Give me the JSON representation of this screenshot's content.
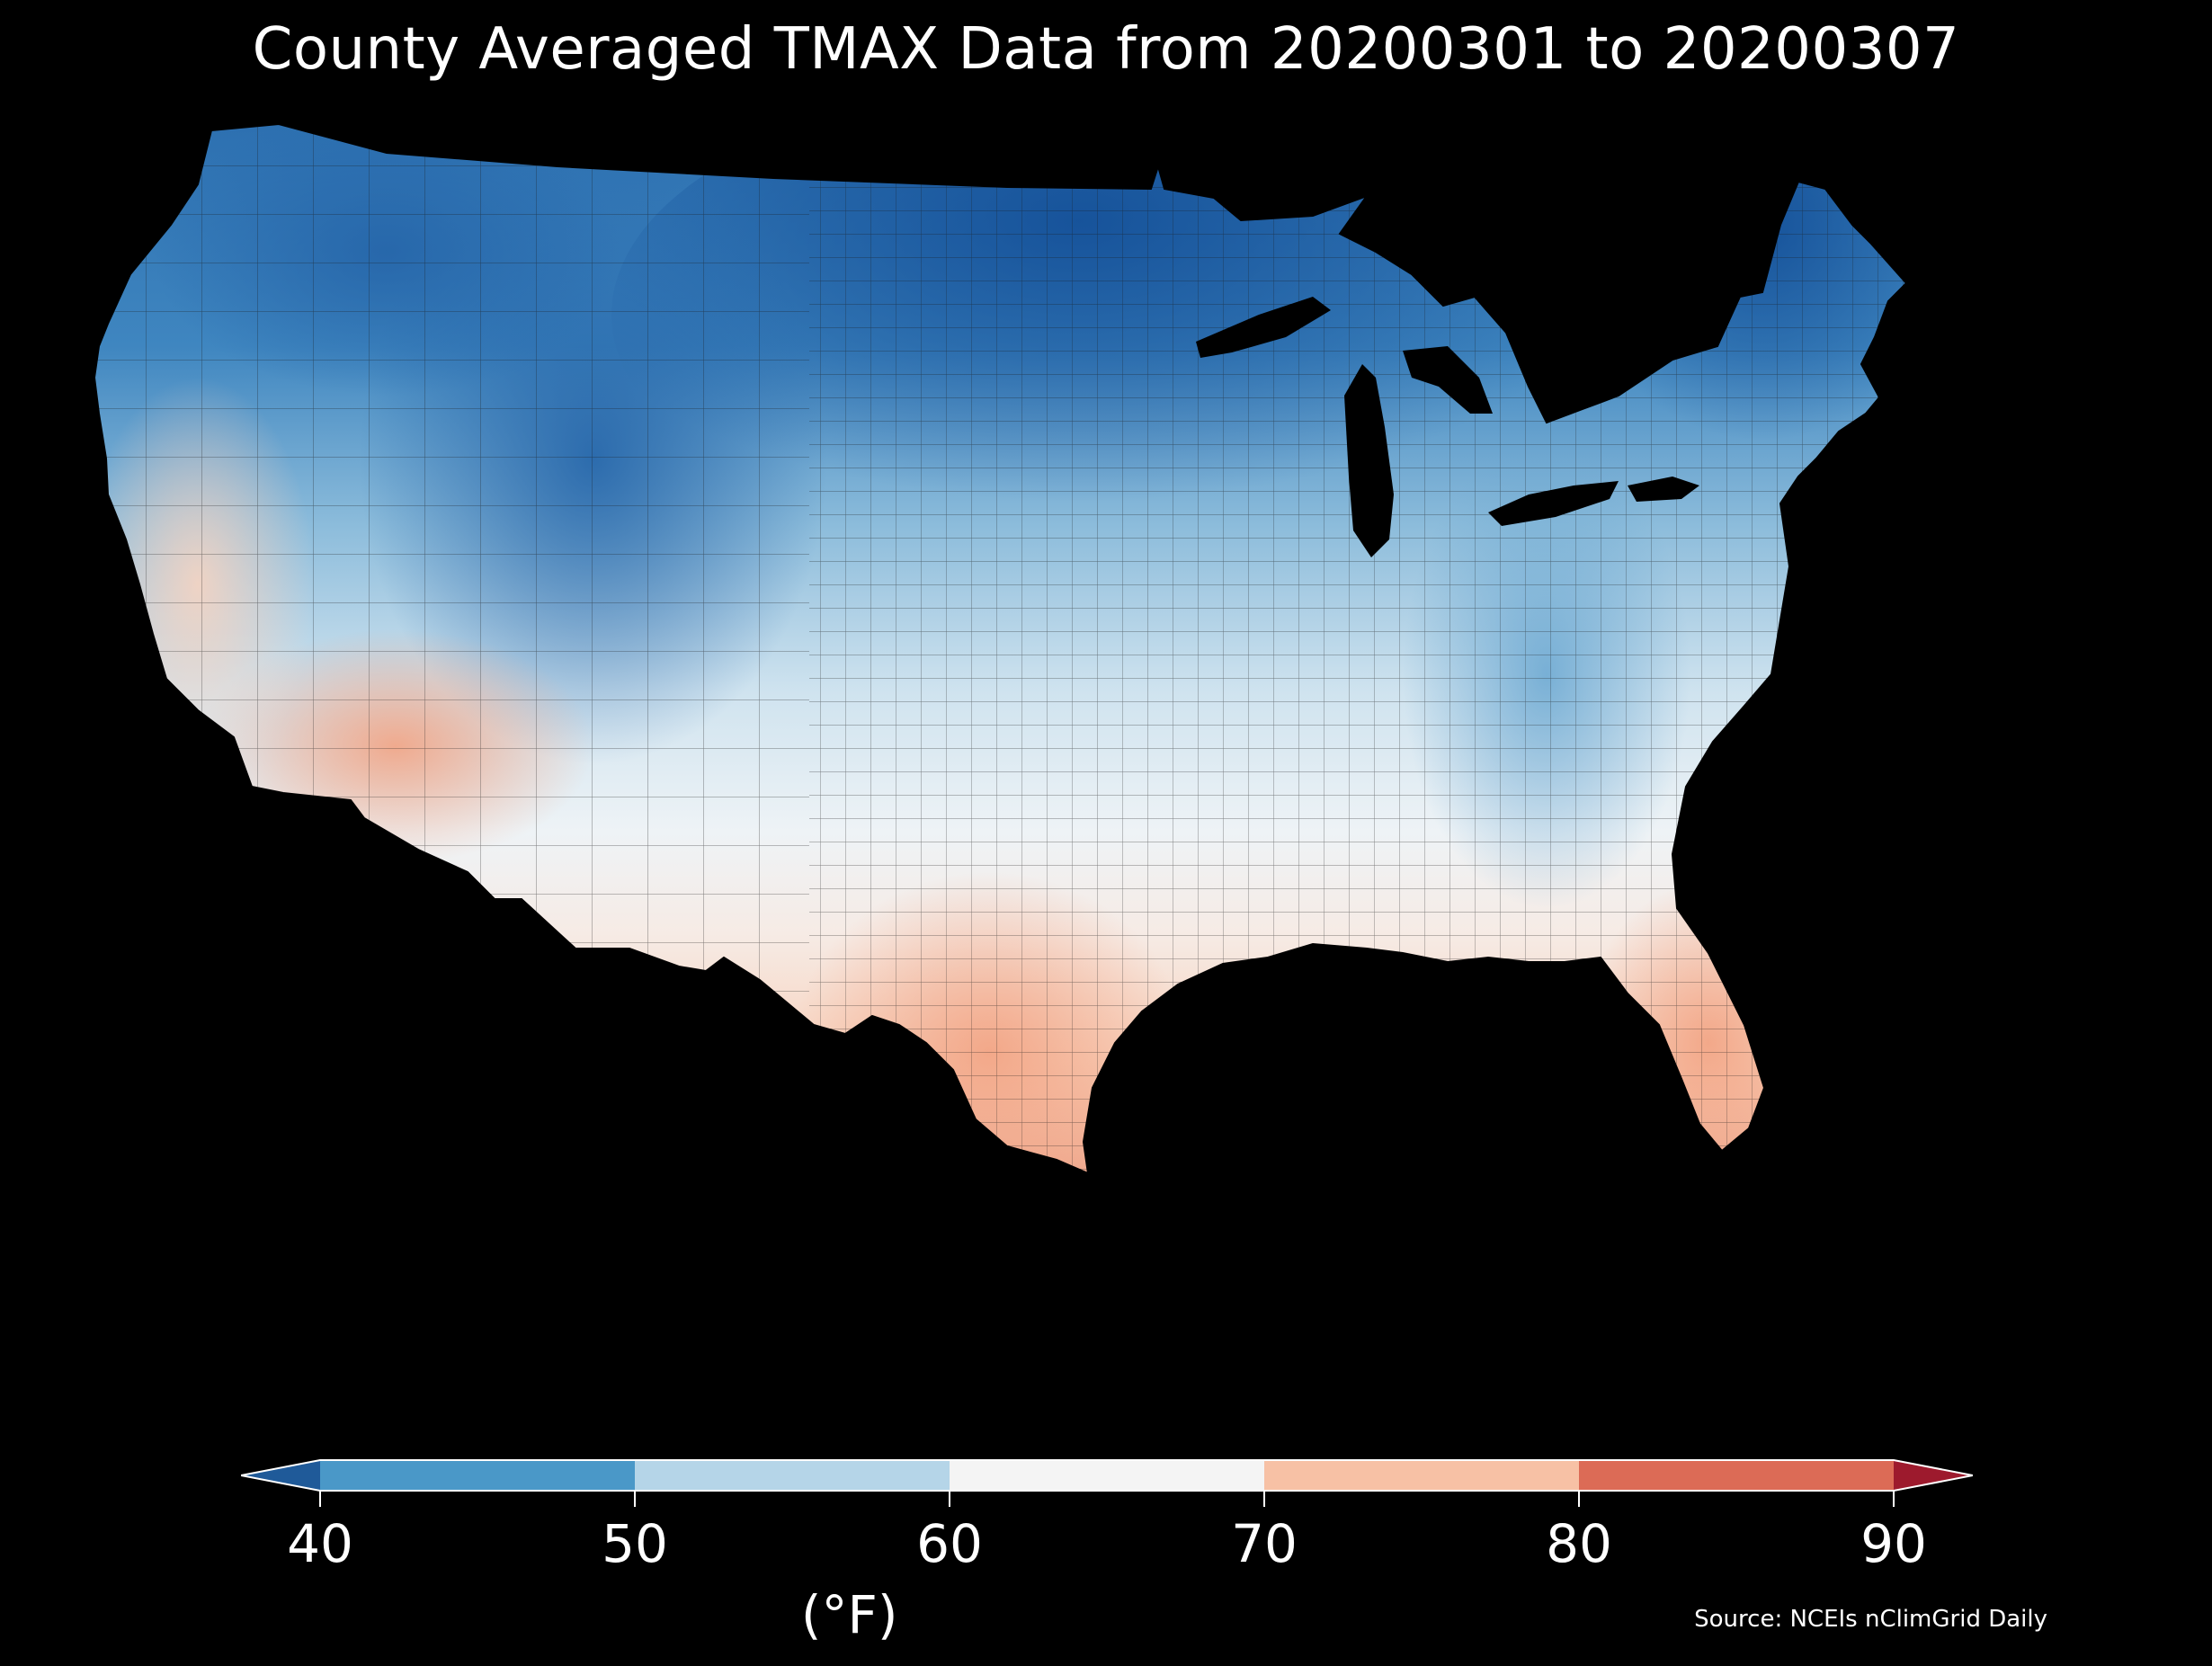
{
  "title": "County Averaged TMAX Data from 20200301 to 20200307",
  "source": "Source: NCEIs nClimGrid Daily",
  "legend": {
    "unit": "(°F)",
    "ticks": [
      "40",
      "50",
      "60",
      "70",
      "80",
      "90"
    ],
    "bins": [
      {
        "range": [
          30,
          40
        ],
        "color": "#1f5a99",
        "extend": "min"
      },
      {
        "range": [
          40,
          50
        ],
        "color": "#4a98c8"
      },
      {
        "range": [
          50,
          60
        ],
        "color": "#b5d5e8"
      },
      {
        "range": [
          60,
          70
        ],
        "color": "#f4f4f4"
      },
      {
        "range": [
          70,
          80
        ],
        "color": "#f7c1a5"
      },
      {
        "range": [
          80,
          90
        ],
        "color": "#dc6b56"
      },
      {
        "range": [
          90,
          100
        ],
        "color": "#9d1a2d",
        "extend": "max"
      }
    ]
  },
  "colors": {
    "background": "#000000",
    "cold_deep": "#1f5a99",
    "cold": "#4a98c8",
    "cool": "#b5d5e8",
    "neutral": "#f4f4f4",
    "warm": "#f7c1a5",
    "hot": "#dc6b56"
  },
  "map": {
    "region": "Contiguous United States",
    "unit": "county",
    "variable": "TMAX",
    "color_scale": "RdBu_r",
    "regions": [
      {
        "name": "northern-plains-minnesota",
        "approx_tmax_f": 38
      },
      {
        "name": "maine-northeast",
        "approx_tmax_f": 40
      },
      {
        "name": "rockies-wyoming-colorado",
        "approx_tmax_f": 42
      },
      {
        "name": "pacific-northwest",
        "approx_tmax_f": 50
      },
      {
        "name": "great-lakes-ohio-valley",
        "approx_tmax_f": 48
      },
      {
        "name": "central-plains",
        "approx_tmax_f": 58
      },
      {
        "name": "appalachians",
        "approx_tmax_f": 52
      },
      {
        "name": "mid-atlantic-southeast-interior",
        "approx_tmax_f": 62
      },
      {
        "name": "california-coast",
        "approx_tmax_f": 66
      },
      {
        "name": "southwest-arizona",
        "approx_tmax_f": 74
      },
      {
        "name": "gulf-coast",
        "approx_tmax_f": 72
      },
      {
        "name": "south-texas",
        "approx_tmax_f": 80
      },
      {
        "name": "florida",
        "approx_tmax_f": 80
      }
    ]
  }
}
